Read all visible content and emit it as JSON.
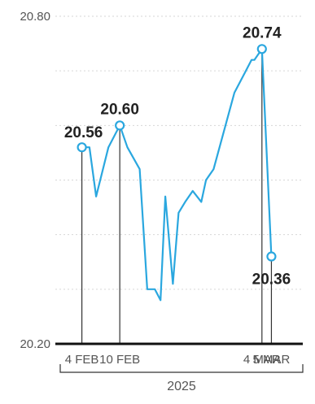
{
  "chart_data": {
    "type": "line",
    "title": "",
    "xlabel": "",
    "ylabel": "",
    "ylim": [
      20.2,
      20.8
    ],
    "y_ticks": [
      {
        "value": 20.8,
        "label": "20.80"
      },
      {
        "value": 20.2,
        "label": "20.20"
      }
    ],
    "x_ticks": [
      {
        "x": 0,
        "label": "4 FEB"
      },
      {
        "x": 4,
        "label": "10 FEB"
      },
      {
        "x": 19,
        "label": "4 MAR"
      },
      {
        "x": 20,
        "label": "5 MAR"
      }
    ],
    "xlim": [
      -2.8,
      24.6
    ],
    "year_label": "2025",
    "grid": true,
    "colors": {
      "series": "#2aa7df",
      "axis": "#111111",
      "grid": "#d6d6d6"
    },
    "series": [
      {
        "x": [
          0,
          0.8,
          1.5,
          2.8,
          4,
          4.8,
          6.1,
          6.9,
          7.7,
          8.3,
          8.8,
          9.6,
          10.2,
          10.9,
          11.7,
          12.6,
          13.1,
          13.9,
          16.1,
          17.3,
          17.9,
          18.2,
          19,
          20
        ],
        "y": [
          20.56,
          20.56,
          20.47,
          20.56,
          20.6,
          20.56,
          20.52,
          20.3,
          20.3,
          20.28,
          20.47,
          20.31,
          20.44,
          20.46,
          20.48,
          20.46,
          20.5,
          20.52,
          20.66,
          20.7,
          20.72,
          20.72,
          20.74,
          20.36
        ]
      }
    ],
    "markers": [
      {
        "x": 0,
        "y": 20.56,
        "label": "20.56",
        "anchor": "left"
      },
      {
        "x": 4,
        "y": 20.6,
        "label": "20.60",
        "anchor": "above"
      },
      {
        "x": 19,
        "y": 20.74,
        "label": "20.74",
        "anchor": "above"
      },
      {
        "x": 20,
        "y": 20.36,
        "label": "20.36",
        "anchor": "below"
      }
    ]
  }
}
